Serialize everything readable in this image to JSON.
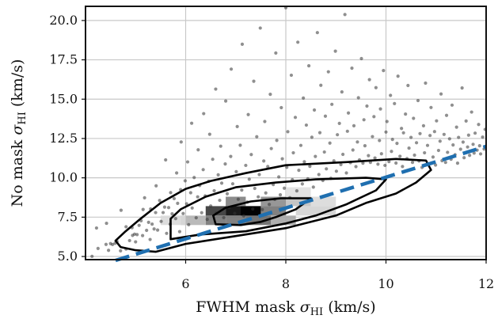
{
  "chart_data": {
    "type": "scatter",
    "title": "",
    "xlabel": {
      "prefix": "FWHM mask ",
      "symbol": "σ",
      "sub": "HI",
      "suffix": " (km/s)"
    },
    "ylabel": {
      "prefix": "No mask ",
      "symbol": "σ",
      "sub": "HI",
      "suffix": " (km/s)"
    },
    "xlim": [
      4.0,
      12.0
    ],
    "ylim": [
      4.8,
      20.9
    ],
    "xticks": [
      6,
      8,
      10,
      12
    ],
    "xtick_labels": [
      "6",
      "8",
      "10",
      "12"
    ],
    "yticks": [
      5.0,
      7.5,
      10.0,
      12.5,
      15.0,
      17.5,
      20.0
    ],
    "ytick_labels": [
      "5.0",
      "7.5",
      "10.0",
      "12.5",
      "15.0",
      "17.5",
      "20.0"
    ],
    "grid": true,
    "legend": "none",
    "scatter_color": "#333333",
    "reference_line": {
      "x": [
        4.6,
        12.0
      ],
      "y": [
        4.75,
        12.0
      ],
      "style": "dashed",
      "color": "#1f6fb0"
    },
    "density_cells": [
      {
        "x": [
          6.8,
          7.5
        ],
        "y": [
          7.6,
          8.2
        ],
        "shade": 1.0
      },
      {
        "x": [
          7.1,
          7.5
        ],
        "y": [
          7.6,
          8.2
        ],
        "shade": 1.0
      },
      {
        "x": [
          6.4,
          6.8
        ],
        "y": [
          7.6,
          8.2
        ],
        "shade": 0.8
      },
      {
        "x": [
          6.8,
          7.2
        ],
        "y": [
          8.2,
          8.8
        ],
        "shade": 0.5
      },
      {
        "x": [
          6.4,
          6.8
        ],
        "y": [
          7.0,
          7.6
        ],
        "shade": 0.55
      },
      {
        "x": [
          5.9,
          6.4
        ],
        "y": [
          7.0,
          7.6
        ],
        "shade": 0.3
      },
      {
        "x": [
          7.5,
          8.0
        ],
        "y": [
          7.6,
          8.2
        ],
        "shade": 0.55
      },
      {
        "x": [
          7.5,
          8.0
        ],
        "y": [
          8.2,
          8.8
        ],
        "shade": 0.45
      },
      {
        "x": [
          8.0,
          8.5
        ],
        "y": [
          8.2,
          8.8
        ],
        "shade": 0.25
      },
      {
        "x": [
          7.2,
          7.7
        ],
        "y": [
          7.0,
          7.6
        ],
        "shade": 0.6
      },
      {
        "x": [
          7.7,
          8.2
        ],
        "y": [
          7.0,
          7.6
        ],
        "shade": 0.35
      },
      {
        "x": [
          6.8,
          7.2
        ],
        "y": [
          7.0,
          7.6
        ],
        "shade": 0.55
      },
      {
        "x": [
          5.5,
          6.0
        ],
        "y": [
          7.0,
          7.6
        ],
        "shade": 0.15
      },
      {
        "x": [
          8.2,
          9.0
        ],
        "y": [
          7.6,
          8.2
        ],
        "shade": 0.18
      },
      {
        "x": [
          8.5,
          9.0
        ],
        "y": [
          8.2,
          8.8
        ],
        "shade": 0.15
      },
      {
        "x": [
          8.0,
          8.5
        ],
        "y": [
          8.8,
          9.4
        ],
        "shade": 0.12
      }
    ],
    "contours": [
      {
        "name": "outer",
        "points": [
          [
            4.7,
            5.6
          ],
          [
            5.0,
            5.4
          ],
          [
            5.4,
            5.3
          ],
          [
            6.0,
            5.8
          ],
          [
            7.0,
            6.3
          ],
          [
            8.0,
            6.8
          ],
          [
            9.0,
            7.6
          ],
          [
            9.6,
            8.4
          ],
          [
            10.2,
            9.0
          ],
          [
            10.6,
            9.7
          ],
          [
            10.9,
            10.5
          ],
          [
            10.8,
            11.1
          ],
          [
            10.2,
            11.2
          ],
          [
            9.2,
            11.0
          ],
          [
            8.0,
            10.8
          ],
          [
            7.2,
            10.3
          ],
          [
            6.5,
            9.8
          ],
          [
            6.0,
            9.3
          ],
          [
            5.5,
            8.4
          ],
          [
            5.1,
            7.4
          ],
          [
            4.8,
            6.6
          ],
          [
            4.6,
            6.0
          ],
          [
            4.7,
            5.6
          ]
        ]
      },
      {
        "name": "middle",
        "points": [
          [
            5.7,
            6.1
          ],
          [
            6.3,
            6.4
          ],
          [
            7.2,
            6.6
          ],
          [
            8.0,
            7.1
          ],
          [
            8.6,
            7.6
          ],
          [
            9.2,
            8.3
          ],
          [
            9.8,
            9.2
          ],
          [
            10.0,
            9.9
          ],
          [
            9.6,
            10.0
          ],
          [
            8.6,
            9.9
          ],
          [
            7.8,
            9.7
          ],
          [
            7.0,
            9.4
          ],
          [
            6.4,
            8.8
          ],
          [
            5.9,
            8.0
          ],
          [
            5.7,
            7.4
          ],
          [
            5.7,
            6.6
          ],
          [
            5.7,
            6.1
          ]
        ]
      },
      {
        "name": "inner",
        "points": [
          [
            6.6,
            7.05
          ],
          [
            7.1,
            7.0
          ],
          [
            7.5,
            7.2
          ],
          [
            7.8,
            7.5
          ],
          [
            8.2,
            8.0
          ],
          [
            8.5,
            8.7
          ],
          [
            7.9,
            8.7
          ],
          [
            7.3,
            8.5
          ],
          [
            6.8,
            8.1
          ],
          [
            6.55,
            7.6
          ],
          [
            6.6,
            7.05
          ]
        ]
      }
    ],
    "scatter_points": [
      [
        4.13,
        5.01
      ],
      [
        4.22,
        6.81
      ],
      [
        4.25,
        5.51
      ],
      [
        4.41,
        5.77
      ],
      [
        4.42,
        7.11
      ],
      [
        4.46,
        5.39
      ],
      [
        4.5,
        5.82
      ],
      [
        4.54,
        5.76
      ],
      [
        4.59,
        5.84
      ],
      [
        4.63,
        5.96
      ],
      [
        4.7,
        5.36
      ],
      [
        4.71,
        7.94
      ],
      [
        4.81,
        5.47
      ],
      [
        4.81,
        6.89
      ],
      [
        4.88,
        6.01
      ],
      [
        4.93,
        6.83
      ],
      [
        4.94,
        6.34
      ],
      [
        4.98,
        6.42
      ],
      [
        5.0,
        5.93
      ],
      [
        5.03,
        6.39
      ],
      [
        5.07,
        6.98
      ],
      [
        5.11,
        7.27
      ],
      [
        5.14,
        6.33
      ],
      [
        5.15,
        7.99
      ],
      [
        5.18,
        8.73
      ],
      [
        5.22,
        6.66
      ],
      [
        5.26,
        7.17
      ],
      [
        5.29,
        6.08
      ],
      [
        5.3,
        8.02
      ],
      [
        5.33,
        7.06
      ],
      [
        5.37,
        6.75
      ],
      [
        5.4,
        7.79
      ],
      [
        5.41,
        9.49
      ],
      [
        5.44,
        6.68
      ],
      [
        5.48,
        8.56
      ],
      [
        5.51,
        7.23
      ],
      [
        5.55,
        7.79
      ],
      [
        5.58,
        8.14
      ],
      [
        5.6,
        11.14
      ],
      [
        5.62,
        6.47
      ],
      [
        5.66,
        8.11
      ],
      [
        5.69,
        7.05
      ],
      [
        5.7,
        9.06
      ],
      [
        5.73,
        7.71
      ],
      [
        5.77,
        8.68
      ],
      [
        5.8,
        7.41
      ],
      [
        5.82,
        10.31
      ],
      [
        5.84,
        8.38
      ],
      [
        5.88,
        6.58
      ],
      [
        5.9,
        9.25
      ],
      [
        5.91,
        12.28
      ],
      [
        5.95,
        7.73
      ],
      [
        5.99,
        9.81
      ],
      [
        6.02,
        8.35
      ],
      [
        6.04,
        11.01
      ],
      [
        6.06,
        7.02
      ],
      [
        6.1,
        9.05
      ],
      [
        6.12,
        13.47
      ],
      [
        6.13,
        8.08
      ],
      [
        6.17,
        10.02
      ],
      [
        6.21,
        7.46
      ],
      [
        6.24,
        8.79
      ],
      [
        6.25,
        11.78
      ],
      [
        6.28,
        9.51
      ],
      [
        6.32,
        7.78
      ],
      [
        6.35,
        10.52
      ],
      [
        6.36,
        14.08
      ],
      [
        6.39,
        8.85
      ],
      [
        6.43,
        7.36
      ],
      [
        6.46,
        9.78
      ],
      [
        6.48,
        12.77
      ],
      [
        6.5,
        8.21
      ],
      [
        6.54,
        11.18
      ],
      [
        6.57,
        9.18
      ],
      [
        6.6,
        15.64
      ],
      [
        6.61,
        7.76
      ],
      [
        6.65,
        10.19
      ],
      [
        6.68,
        8.57
      ],
      [
        6.7,
        12.01
      ],
      [
        6.72,
        9.66
      ],
      [
        6.76,
        7.47
      ],
      [
        6.79,
        10.88
      ],
      [
        6.8,
        14.88
      ],
      [
        6.83,
        8.99
      ],
      [
        6.87,
        8.11
      ],
      [
        6.9,
        11.36
      ],
      [
        6.91,
        16.91
      ],
      [
        6.94,
        9.62
      ],
      [
        6.98,
        7.74
      ],
      [
        7.01,
        10.39
      ],
      [
        7.03,
        13.26
      ],
      [
        7.05,
        8.64
      ],
      [
        7.09,
        12.07
      ],
      [
        7.12,
        9.22
      ],
      [
        7.13,
        18.49
      ],
      [
        7.16,
        7.58
      ],
      [
        7.2,
        10.79
      ],
      [
        7.23,
        8.46
      ],
      [
        7.25,
        14.02
      ],
      [
        7.27,
        9.91
      ],
      [
        7.31,
        11.48
      ],
      [
        7.34,
        8.02
      ],
      [
        7.36,
        16.14
      ],
      [
        7.38,
        9.33
      ],
      [
        7.42,
        12.61
      ],
      [
        7.45,
        8.79
      ],
      [
        7.47,
        10.21
      ],
      [
        7.49,
        19.52
      ],
      [
        7.53,
        7.98
      ],
      [
        7.56,
        11.07
      ],
      [
        7.58,
        13.58
      ],
      [
        7.6,
        9.04
      ],
      [
        7.64,
        10.72
      ],
      [
        7.67,
        8.31
      ],
      [
        7.69,
        15.31
      ],
      [
        7.71,
        11.86
      ],
      [
        7.75,
        9.57
      ],
      [
        7.78,
        8.63
      ],
      [
        7.8,
        17.93
      ],
      [
        7.82,
        12.38
      ],
      [
        7.86,
        10.06
      ],
      [
        7.89,
        8.92
      ],
      [
        7.91,
        14.46
      ],
      [
        7.93,
        11.21
      ],
      [
        7.97,
        9.34
      ],
      [
        8.0,
        20.81
      ],
      [
        8.02,
        10.67
      ],
      [
        8.04,
        12.93
      ],
      [
        8.08,
        8.74
      ],
      [
        8.11,
        16.52
      ],
      [
        8.13,
        9.88
      ],
      [
        8.15,
        11.59
      ],
      [
        8.19,
        13.84
      ],
      [
        8.22,
        9.17
      ],
      [
        8.24,
        18.62
      ],
      [
        8.26,
        10.48
      ],
      [
        8.3,
        12.06
      ],
      [
        8.33,
        9.61
      ],
      [
        8.35,
        15.07
      ],
      [
        8.37,
        11.02
      ],
      [
        8.41,
        13.35
      ],
      [
        8.44,
        9.94
      ],
      [
        8.46,
        17.12
      ],
      [
        8.48,
        10.73
      ],
      [
        8.52,
        12.58
      ],
      [
        8.55,
        9.41
      ],
      [
        8.57,
        14.31
      ],
      [
        8.59,
        11.36
      ],
      [
        8.63,
        19.23
      ],
      [
        8.66,
        10.21
      ],
      [
        8.68,
        12.87
      ],
      [
        8.7,
        15.88
      ],
      [
        8.74,
        9.83
      ],
      [
        8.77,
        11.64
      ],
      [
        8.79,
        13.92
      ],
      [
        8.81,
        10.57
      ],
      [
        8.85,
        16.74
      ],
      [
        8.88,
        12.21
      ],
      [
        8.9,
        9.97
      ],
      [
        8.92,
        14.67
      ],
      [
        8.96,
        11.08
      ],
      [
        8.99,
        18.05
      ],
      [
        9.01,
        10.42
      ],
      [
        9.03,
        12.74
      ],
      [
        9.07,
        13.46
      ],
      [
        9.1,
        10.84
      ],
      [
        9.12,
        15.46
      ],
      [
        9.14,
        11.49
      ],
      [
        9.18,
        20.38
      ],
      [
        9.21,
        10.31
      ],
      [
        9.23,
        12.96
      ],
      [
        9.25,
        14.12
      ],
      [
        9.29,
        10.96
      ],
      [
        9.32,
        16.97
      ],
      [
        9.34,
        11.77
      ],
      [
        9.36,
        13.31
      ],
      [
        9.4,
        10.71
      ],
      [
        9.43,
        12.28
      ],
      [
        9.45,
        15.09
      ],
      [
        9.47,
        11.14
      ],
      [
        9.51,
        17.58
      ],
      [
        9.54,
        10.93
      ],
      [
        9.56,
        13.69
      ],
      [
        9.58,
        12.04
      ],
      [
        9.62,
        14.56
      ],
      [
        9.65,
        11.41
      ],
      [
        9.67,
        16.24
      ],
      [
        9.69,
        10.98
      ],
      [
        9.73,
        12.62
      ],
      [
        9.76,
        13.89
      ],
      [
        9.78,
        11.26
      ],
      [
        9.8,
        15.73
      ],
      [
        9.84,
        10.87
      ],
      [
        9.87,
        12.37
      ],
      [
        9.89,
        14.38
      ],
      [
        9.91,
        11.53
      ],
      [
        9.95,
        16.82
      ],
      [
        9.98,
        10.79
      ],
      [
        10.0,
        12.91
      ],
      [
        10.02,
        13.58
      ],
      [
        10.06,
        11.03
      ],
      [
        10.09,
        15.24
      ],
      [
        10.11,
        11.68
      ],
      [
        10.13,
        12.44
      ],
      [
        10.17,
        14.72
      ],
      [
        10.2,
        10.94
      ],
      [
        10.22,
        12.19
      ],
      [
        10.24,
        16.46
      ],
      [
        10.28,
        11.37
      ],
      [
        10.31,
        13.14
      ],
      [
        10.33,
        10.72
      ],
      [
        10.35,
        12.86
      ],
      [
        10.39,
        14.05
      ],
      [
        10.42,
        11.22
      ],
      [
        10.44,
        15.87
      ],
      [
        10.46,
        11.89
      ],
      [
        10.5,
        12.57
      ],
      [
        10.53,
        10.98
      ],
      [
        10.55,
        13.78
      ],
      [
        10.57,
        11.44
      ],
      [
        10.61,
        12.23
      ],
      [
        10.64,
        14.91
      ],
      [
        10.66,
        11.07
      ],
      [
        10.68,
        12.81
      ],
      [
        10.72,
        10.66
      ],
      [
        10.75,
        13.31
      ],
      [
        10.77,
        11.59
      ],
      [
        10.79,
        16.02
      ],
      [
        10.83,
        12.06
      ],
      [
        10.86,
        10.89
      ],
      [
        10.88,
        12.69
      ],
      [
        10.9,
        14.47
      ],
      [
        10.94,
        11.32
      ],
      [
        10.97,
        12.94
      ],
      [
        10.99,
        10.81
      ],
      [
        11.01,
        13.62
      ],
      [
        11.05,
        11.74
      ],
      [
        11.08,
        12.33
      ],
      [
        11.1,
        15.33
      ],
      [
        11.12,
        11.09
      ],
      [
        11.16,
        12.76
      ],
      [
        11.19,
        10.98
      ],
      [
        11.21,
        13.97
      ],
      [
        11.23,
        11.62
      ],
      [
        11.27,
        12.48
      ],
      [
        11.3,
        11.18
      ],
      [
        11.32,
        14.62
      ],
      [
        11.34,
        12.09
      ],
      [
        11.38,
        11.47
      ],
      [
        11.41,
        13.22
      ],
      [
        11.43,
        10.93
      ],
      [
        11.45,
        12.57
      ],
      [
        11.49,
        11.82
      ],
      [
        11.52,
        15.71
      ],
      [
        11.54,
        12.27
      ],
      [
        11.56,
        11.28
      ],
      [
        11.6,
        13.61
      ],
      [
        11.63,
        11.96
      ],
      [
        11.65,
        12.71
      ],
      [
        11.67,
        11.43
      ],
      [
        11.71,
        14.18
      ],
      [
        11.74,
        12.13
      ],
      [
        11.76,
        11.57
      ],
      [
        11.78,
        12.84
      ],
      [
        11.82,
        11.76
      ],
      [
        11.85,
        13.39
      ],
      [
        11.87,
        12.04
      ],
      [
        11.89,
        11.52
      ],
      [
        11.93,
        12.59
      ],
      [
        11.96,
        11.83
      ],
      [
        11.98,
        13.08
      ]
    ]
  }
}
